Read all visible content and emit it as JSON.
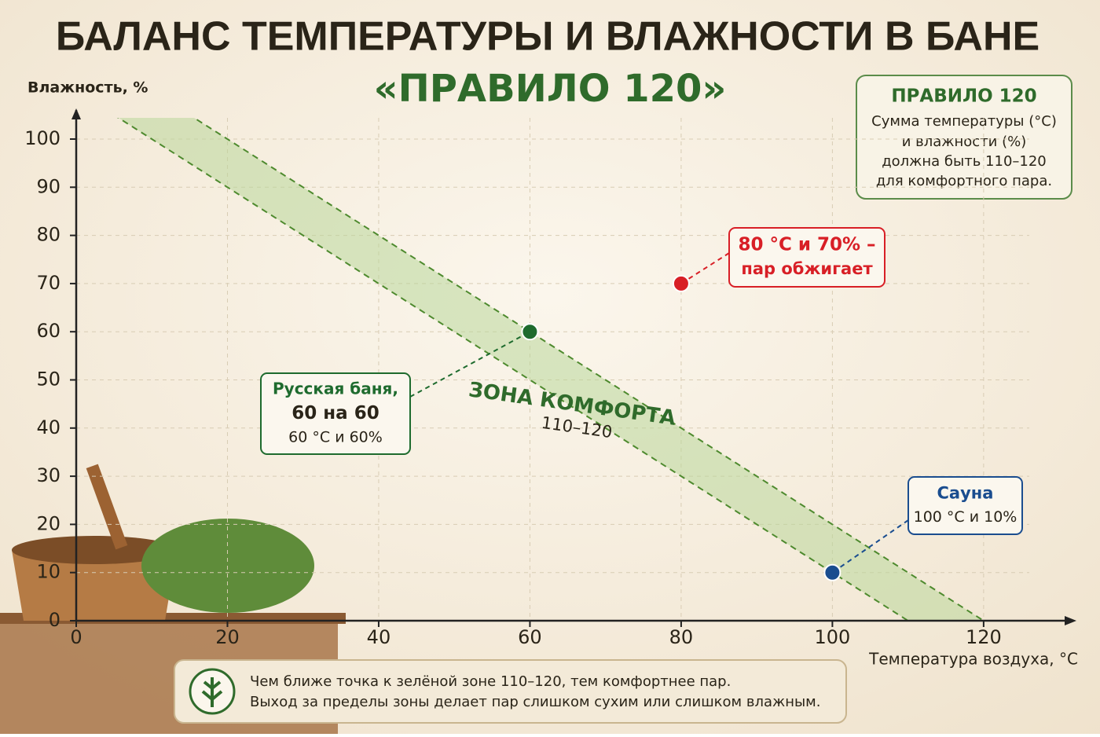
{
  "chart_data": {
    "type": "scatter",
    "title": "БАЛАНС ТЕМПЕРАТУРЫ И ВЛАЖНОСТИ В БАНЕ",
    "subtitle": "«ПРАВИЛО 120»",
    "x_label": "Температура воздуха, °С",
    "y_label": "Влажность, %",
    "xlim": [
      0,
      125
    ],
    "ylim": [
      0,
      100
    ],
    "xticks": [
      0,
      20,
      40,
      60,
      80,
      100,
      120
    ],
    "yticks": [
      0,
      10,
      20,
      30,
      40,
      50,
      60,
      70,
      80,
      90,
      100
    ],
    "grid": true,
    "zone": {
      "label": "ЗОНА КОМФОРТА",
      "range_label": "110–120",
      "sum_min": 110,
      "sum_max": 120,
      "color": "#b9d79a"
    },
    "points": [
      {
        "x": 60,
        "y": 60,
        "color": "#1e6b2e",
        "label": [
          "Русская баня,",
          "60 на 60",
          "60 °С и 60%"
        ]
      },
      {
        "x": 80,
        "y": 70,
        "color": "#d81f26",
        "label": [
          "80 °С и 70% –",
          "пар обжигает"
        ]
      },
      {
        "x": 100,
        "y": 10,
        "color": "#1a4d8f",
        "label": [
          "Сауна",
          "100 °С и 10%"
        ]
      }
    ],
    "info_box": {
      "title": "ПРАВИЛО 120",
      "lines": [
        "Сумма температуры (°С)",
        "и влажности (%)",
        "должна быть 110–120",
        "для комфортного пара."
      ]
    },
    "note": [
      "Чем ближе точка к зелёной зоне 110–120, тем комфортнее пар.",
      "Выход за пределы зоны делает пар слишком сухим или слишком влажным."
    ]
  }
}
